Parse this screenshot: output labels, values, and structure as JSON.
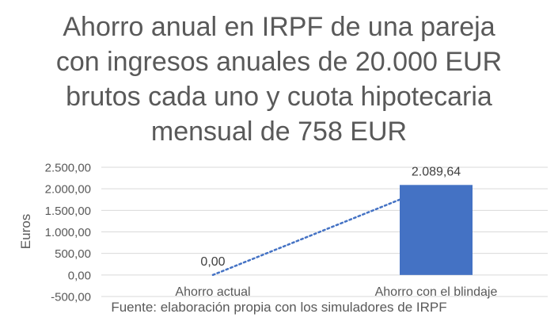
{
  "chart_data": {
    "type": "bar",
    "title": [
      "Ahorro anual en IRPF de una pareja",
      "con ingresos anuales de 20.000 EUR",
      "brutos cada uno y cuota hipotecaria",
      "mensual de 758 EUR"
    ],
    "xlabel": "",
    "ylabel": "Euros",
    "categories": [
      "Ahorro actual",
      "Ahorro con el blindaje"
    ],
    "values": [
      0.0,
      2089.64
    ],
    "data_labels": [
      "0,00",
      "2.089,64"
    ],
    "ylim": [
      -500,
      2500
    ],
    "yticks": [
      2500,
      2000,
      1500,
      1000,
      500,
      0,
      -500
    ],
    "ytick_labels": [
      "2.500,00",
      "2.000,00",
      "1.500,00",
      "1.000,00",
      "500,00",
      "0,00",
      "-500,00"
    ],
    "grid": true,
    "legend": "none",
    "trendline": "linear, dotted",
    "bar_color": "#4472C4",
    "trendline_color": "#4472C4",
    "grid_color": "#D9D9D9",
    "source": "Fuente: elaboración propia con los simuladores de IRPF"
  }
}
